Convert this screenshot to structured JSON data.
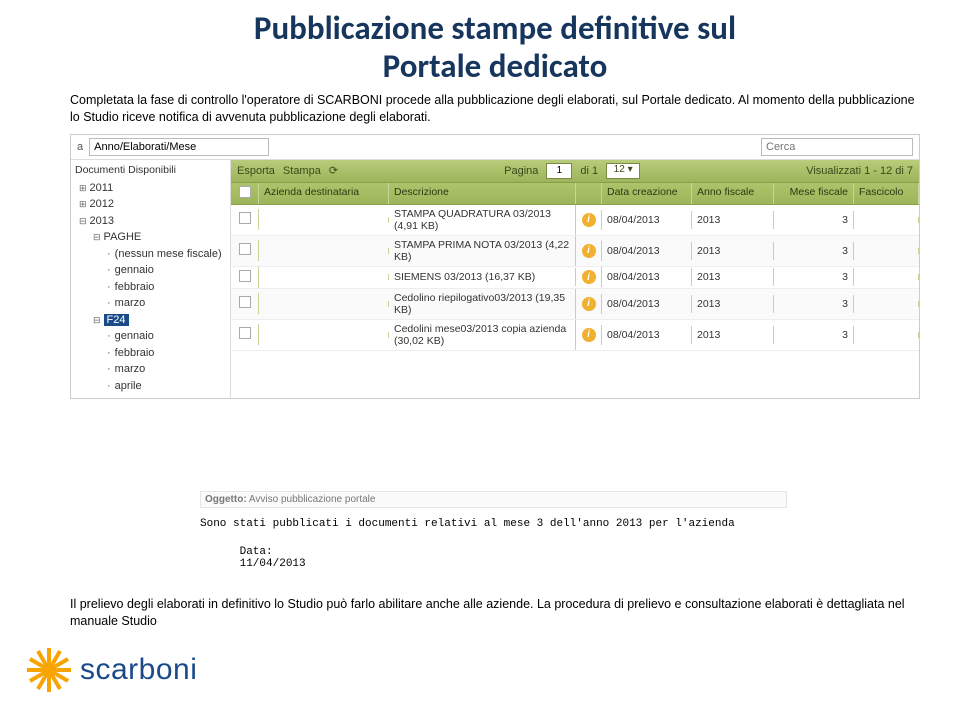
{
  "title_line1": "Pubblicazione stampe definitive sul",
  "title_line2": "Portale dedicato",
  "intro": "Completata la fase di controllo l'operatore di SCARBONI procede alla pubblicazione degli elaborati, sul Portale dedicato. Al momento della pubblicazione lo Studio riceve notifica di avvenuta pubblicazione degli elaborati.",
  "outro": "Il prelievo degli elaborati in definitivo lo Studio può farlo abilitare anche alle aziende. La procedura di prelievo e consultazione elaborati è dettagliata nel manuale Studio",
  "topbar": {
    "label": "a",
    "path_value": "Anno/Elaborati/Mese",
    "search_placeholder": "Cerca"
  },
  "tree": {
    "title": "Documenti Disponibili",
    "items": [
      {
        "lvl": 1,
        "cls": "exp",
        "text": "2011"
      },
      {
        "lvl": 1,
        "cls": "exp",
        "text": "2012"
      },
      {
        "lvl": 1,
        "cls": "col",
        "text": "2013"
      },
      {
        "lvl": 2,
        "cls": "col",
        "text": "PAGHE"
      },
      {
        "lvl": 3,
        "cls": "bullet",
        "text": "(nessun mese fiscale)"
      },
      {
        "lvl": 3,
        "cls": "bullet",
        "text": "gennaio"
      },
      {
        "lvl": 3,
        "cls": "bullet",
        "text": "febbraio"
      },
      {
        "lvl": 3,
        "cls": "bullet",
        "text": "marzo"
      },
      {
        "lvl": 2,
        "cls": "col",
        "text": "F24",
        "hl": true
      },
      {
        "lvl": 3,
        "cls": "bullet",
        "text": "gennaio"
      },
      {
        "lvl": 3,
        "cls": "bullet",
        "text": "febbraio"
      },
      {
        "lvl": 3,
        "cls": "bullet",
        "text": "marzo"
      },
      {
        "lvl": 3,
        "cls": "bullet",
        "text": "aprile"
      }
    ]
  },
  "toolbar": {
    "esporta": "Esporta",
    "stampa": "Stampa",
    "pagina": "Pagina",
    "pagina_val": "1",
    "di": "di 1",
    "size_val": "12 ▾",
    "visual": "Visualizzati 1 - 12 di 7"
  },
  "columns": {
    "cb": "",
    "azienda": "Azienda destinataria",
    "descr": "Descrizione",
    "data": "Data creazione",
    "anno": "Anno fiscale",
    "mese": "Mese fiscale",
    "fasc": "Fascicolo"
  },
  "rows": [
    {
      "descr": "STAMPA QUADRATURA 03/2013 (4,91 KB)",
      "data": "08/04/2013",
      "anno": "2013",
      "mese": "3"
    },
    {
      "descr": "STAMPA PRIMA NOTA 03/2013 (4,22 KB)",
      "data": "08/04/2013",
      "anno": "2013",
      "mese": "3"
    },
    {
      "descr": "SIEMENS 03/2013 (16,37 KB)",
      "data": "08/04/2013",
      "anno": "2013",
      "mese": "3"
    },
    {
      "descr": "Cedolino riepilogativo03/2013 (19,35 KB)",
      "data": "08/04/2013",
      "anno": "2013",
      "mese": "3"
    },
    {
      "descr": "Cedolini mese03/2013 copia azienda (30,02 KB)",
      "data": "08/04/2013",
      "anno": "2013",
      "mese": "3"
    }
  ],
  "notif": {
    "subject_label": "Oggetto:",
    "subject": "Avviso pubblicazione portale",
    "body": "Sono stati pubblicati i documenti relativi al mese 3 dell'anno 2013 per l'azienda",
    "date_label": "Data:",
    "date": "11/04/2013"
  },
  "logo": {
    "text": "scarboni"
  },
  "colors": {
    "title": "#17365d",
    "toolbar_bg_top": "#b8cc7a",
    "toolbar_bg_bot": "#9cb45a",
    "highlight": "#1a4a8a",
    "sun": "#f7a400"
  }
}
